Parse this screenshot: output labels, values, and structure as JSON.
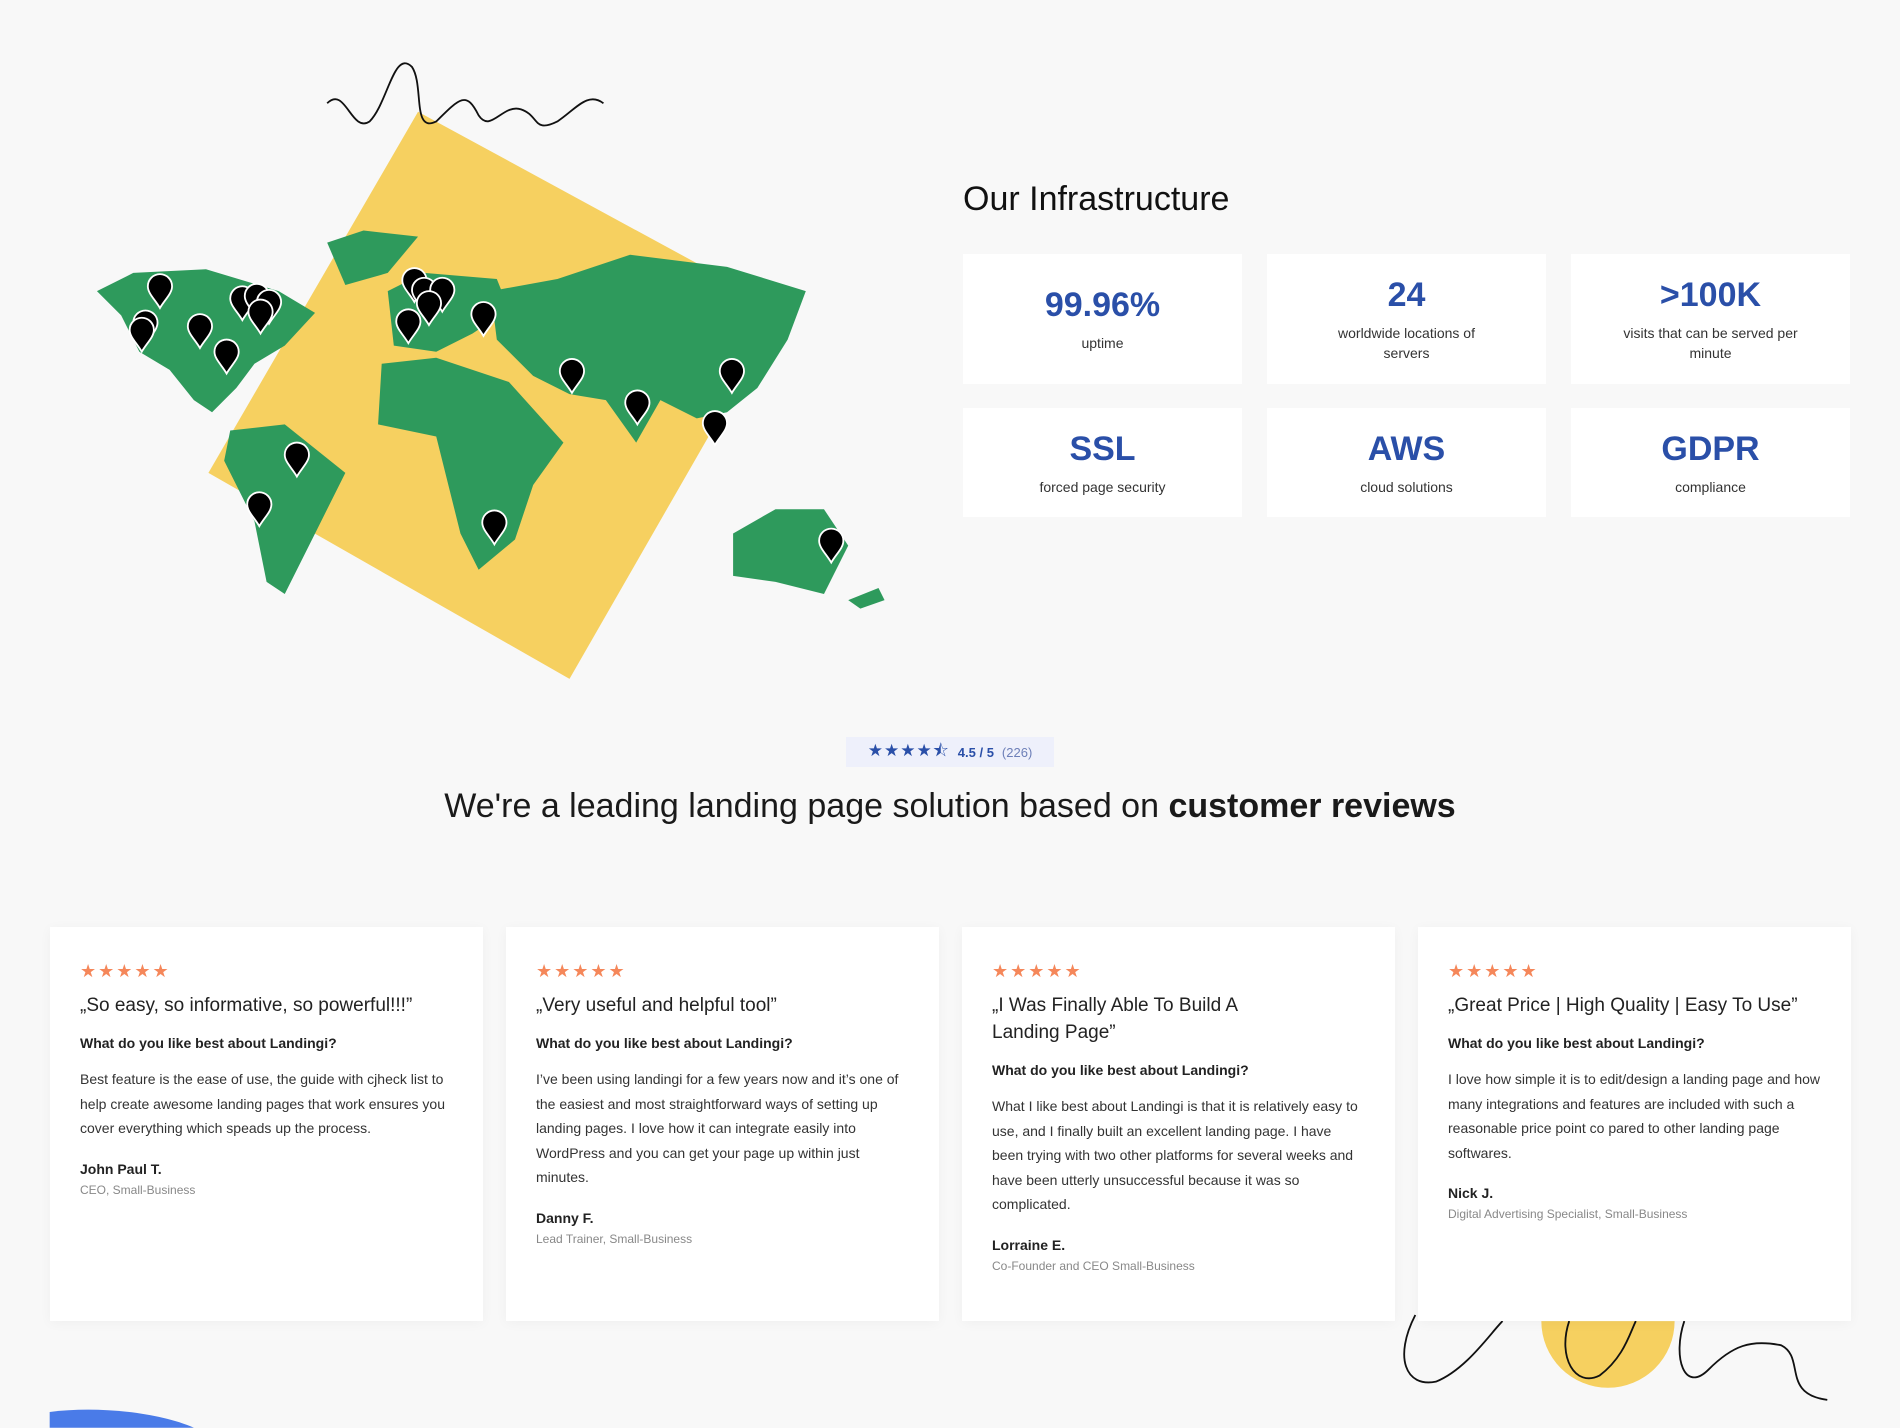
{
  "infrastructure": {
    "title": "Our Infrastructure",
    "stats": [
      {
        "value": "99.96%",
        "label": "uptime"
      },
      {
        "value": "24",
        "label": "worldwide locations of servers"
      },
      {
        "value": ">100K",
        "label": "visits that can be served per minute"
      },
      {
        "value": "SSL",
        "label": "forced page security"
      },
      {
        "value": "AWS",
        "label": "cloud solutions"
      },
      {
        "value": "GDPR",
        "label": "compliance"
      }
    ]
  },
  "rating": {
    "stars": "★★★★⯪",
    "score": "4.5 / 5",
    "count": "(226)",
    "value": 4.5,
    "max": 5
  },
  "headline": {
    "text": "We're a leading landing page solution based on ",
    "bold": "customer reviews"
  },
  "reviews": [
    {
      "stars": "★★★★★",
      "title": "„So easy, so informative, so powerful!!!”",
      "question": "What do you like best about Landingi?",
      "body": "Best feature is the ease of use, the guide with cjheck list to help create awesome landing pages that work ensures you cover everything which speads up the process.",
      "name": "John Paul T.",
      "role": "CEO, Small-Business"
    },
    {
      "stars": "★★★★★",
      "title": "„Very useful and helpful tool”",
      "question": "What do you like best about Landingi?",
      "body": "I’ve been using landingi for a few years now and it’s one of the easiest and most straightforward ways of setting up landing pages. I love how it can integrate easily into WordPress and you can get your page up within just minutes.",
      "name": "Danny F.",
      "role": "Lead Trainer, Small-Business"
    },
    {
      "stars": "★★★★★",
      "title": "„I Was Finally Able To Build A Landing Page”",
      "question": "What do you like best about Landingi?",
      "body": "What I like best about Landingi is that it is relatively easy to use, and I finally built an excellent landing page. I have been trying with two other platforms for several weeks and have been utterly unsuccessful because it was so complicated.",
      "name": "Lorraine E.",
      "role": "Co-Founder and CEO Small-Business"
    },
    {
      "stars": "★★★★★",
      "title": "„Great Price | High Quality | Easy To Use”",
      "question": "What do you like best about Landingi?",
      "body": "I love how simple it is to edit/design a landing page and how many integrations and features are included with such a reasonable price point co pared to other landing page softwares.",
      "name": "Nick J.",
      "role": "Digital Advertising Specialist, Small-Business"
    }
  ],
  "colors": {
    "accent": "#2a4fa8",
    "review_star": "#f5875a",
    "map_green": "#2e9a5c",
    "map_backdrop": "#f6d060",
    "badge_bg": "#eef0fb"
  }
}
